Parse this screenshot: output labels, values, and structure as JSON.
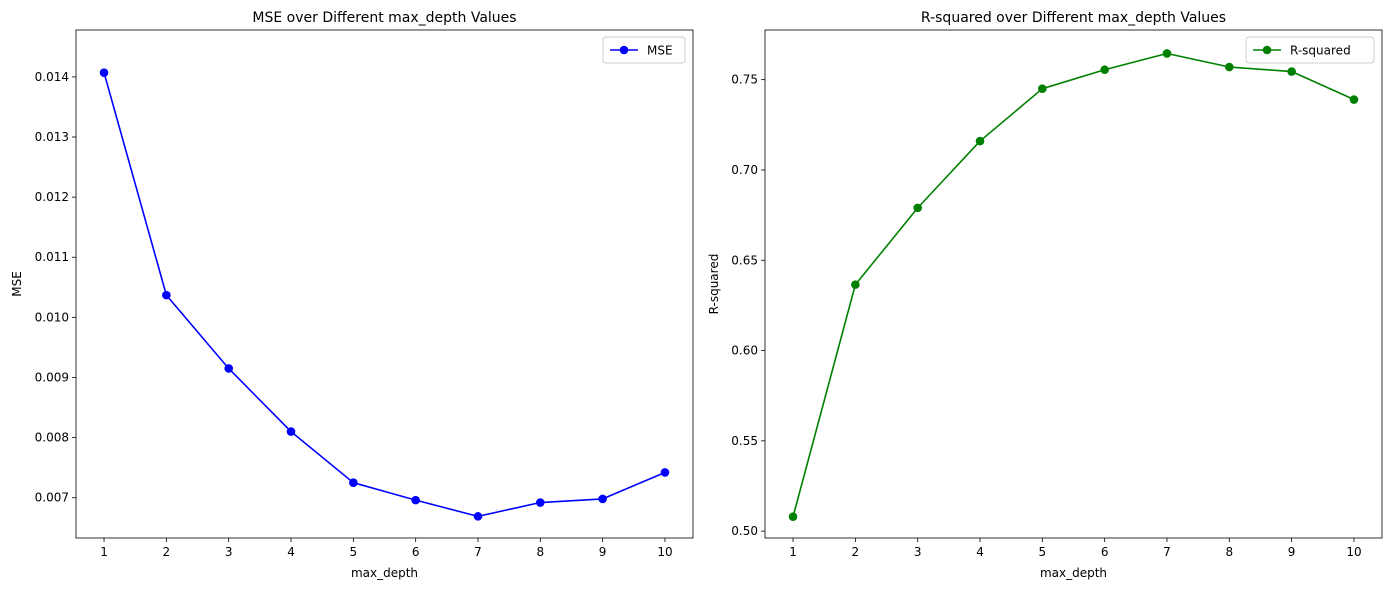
{
  "chart_data": [
    {
      "type": "line",
      "title": "MSE over Different max_depth Values",
      "xlabel": "max_depth",
      "ylabel": "MSE",
      "x": [
        1,
        2,
        3,
        4,
        5,
        6,
        7,
        8,
        9,
        10
      ],
      "xlim": [
        0.55,
        10.45
      ],
      "ylim": [
        0.00633,
        0.01478
      ],
      "yticks": [
        0.007,
        0.008,
        0.009,
        0.01,
        0.011,
        0.012,
        0.013,
        0.014
      ],
      "ytick_labels": [
        "0.007",
        "0.008",
        "0.009",
        "0.010",
        "0.011",
        "0.012",
        "0.013",
        "0.014"
      ],
      "xtick_labels": [
        "1",
        "2",
        "3",
        "4",
        "5",
        "6",
        "7",
        "8",
        "9",
        "10"
      ],
      "grid": false,
      "legend_position": "top-right",
      "series": [
        {
          "name": "MSE",
          "color": "#0000ff",
          "marker": "circle",
          "values": [
            0.01407,
            0.01037,
            0.00915,
            0.0081,
            0.00725,
            0.00696,
            0.00669,
            0.00692,
            0.00698,
            0.00742
          ]
        }
      ]
    },
    {
      "type": "line",
      "title": "R-squared over Different max_depth Values",
      "xlabel": "max_depth",
      "ylabel": "R-squared",
      "x": [
        1,
        2,
        3,
        4,
        5,
        6,
        7,
        8,
        9,
        10
      ],
      "xlim": [
        0.55,
        10.45
      ],
      "ylim": [
        0.4962,
        0.7775
      ],
      "yticks": [
        0.5,
        0.55,
        0.6,
        0.65,
        0.7,
        0.75
      ],
      "ytick_labels": [
        "0.50",
        "0.55",
        "0.60",
        "0.65",
        "0.70",
        "0.75"
      ],
      "xtick_labels": [
        "1",
        "2",
        "3",
        "4",
        "5",
        "6",
        "7",
        "8",
        "9",
        "10"
      ],
      "grid": false,
      "legend_position": "top-right",
      "series": [
        {
          "name": "R-squared",
          "color": "#008000",
          "marker": "circle",
          "values": [
            0.508,
            0.6365,
            0.679,
            0.716,
            0.745,
            0.7555,
            0.7645,
            0.757,
            0.7545,
            0.739
          ]
        }
      ]
    }
  ]
}
